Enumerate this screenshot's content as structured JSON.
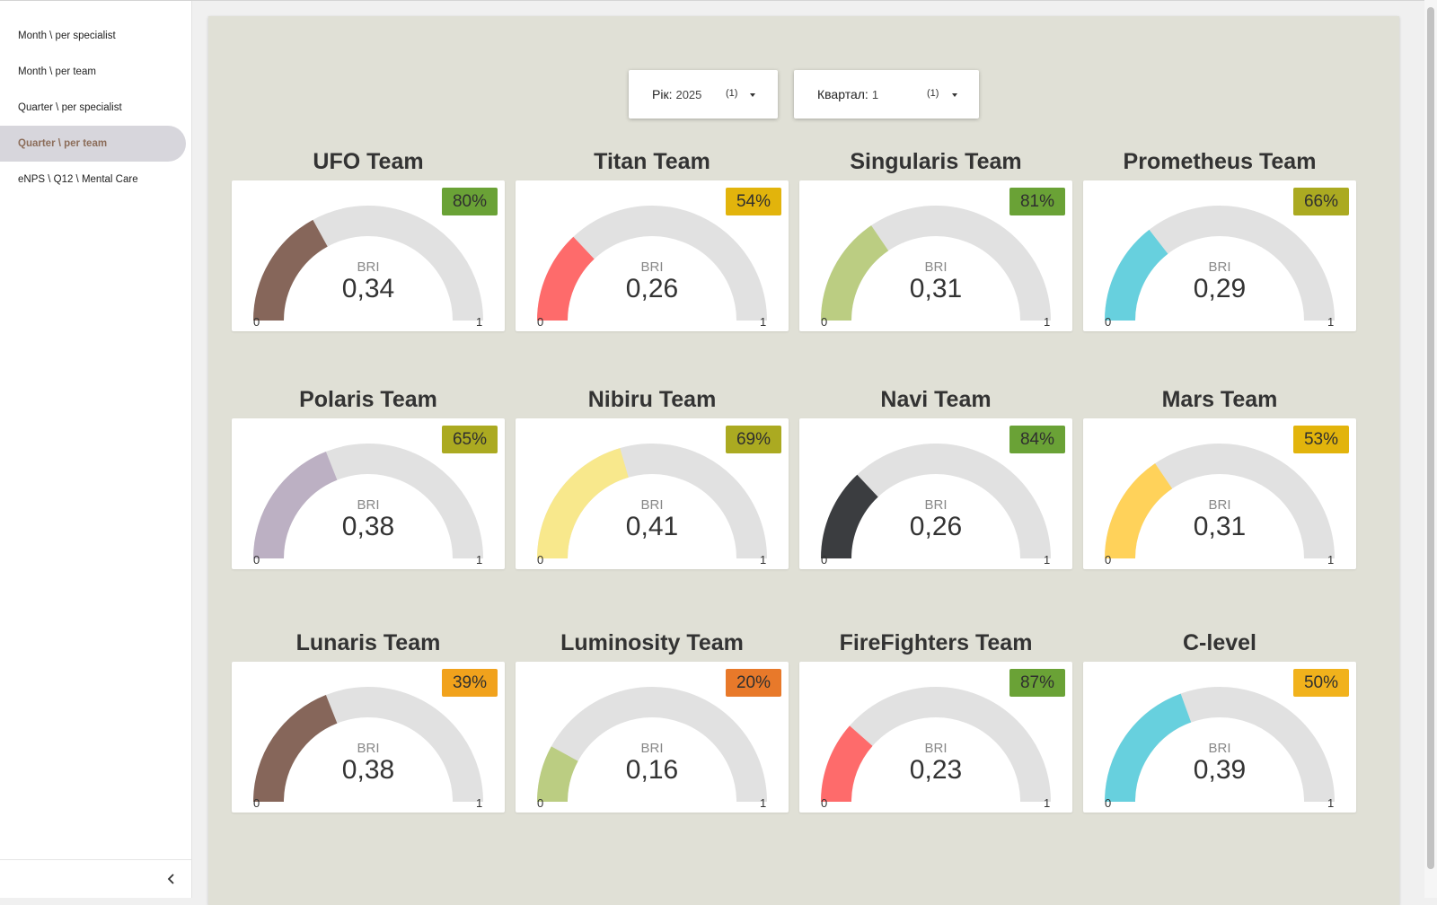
{
  "sidebar": {
    "items": [
      {
        "label": "Month \\ per specialist",
        "active": false
      },
      {
        "label": "Month \\ per team",
        "active": false
      },
      {
        "label": "Quarter \\ per specialist",
        "active": false
      },
      {
        "label": "Quarter \\ per team",
        "active": true
      },
      {
        "label": "eNPS \\ Q12 \\ Mental Care",
        "active": false
      }
    ]
  },
  "filters": {
    "year": {
      "label": "Рік:",
      "value": "2025",
      "count": "(1)"
    },
    "quarter": {
      "label": "Квартал:",
      "value": "1",
      "count": "(1)"
    }
  },
  "teams": [
    {
      "name": "UFO Team",
      "bri": "0,34",
      "bri_value": 0.34,
      "percent": "80%",
      "gauge_color": "#86665a",
      "badge_color": "#6aa236"
    },
    {
      "name": "Titan Team",
      "bri": "0,26",
      "bri_value": 0.26,
      "percent": "54%",
      "gauge_color": "#fe6b6b",
      "badge_color": "#e2b40c"
    },
    {
      "name": "Singularis Team",
      "bri": "0,31",
      "bri_value": 0.31,
      "percent": "81%",
      "gauge_color": "#bbcd82",
      "badge_color": "#6aa236"
    },
    {
      "name": "Prometheus Team",
      "bri": "0,29",
      "bri_value": 0.29,
      "percent": "66%",
      "gauge_color": "#67d0de",
      "badge_color": "#abaa21"
    },
    {
      "name": "Polaris Team",
      "bri": "0,38",
      "bri_value": 0.38,
      "percent": "65%",
      "gauge_color": "#bcb0c3",
      "badge_color": "#abaa21"
    },
    {
      "name": "Nibiru Team",
      "bri": "0,41",
      "bri_value": 0.41,
      "percent": "69%",
      "gauge_color": "#f8e88c",
      "badge_color": "#abaa21"
    },
    {
      "name": "Navi Team",
      "bri": "0,26",
      "bri_value": 0.26,
      "percent": "84%",
      "gauge_color": "#3b3d40",
      "badge_color": "#6aa236"
    },
    {
      "name": "Mars Team",
      "bri": "0,31",
      "bri_value": 0.31,
      "percent": "53%",
      "gauge_color": "#ffd25a",
      "badge_color": "#e2b40c"
    },
    {
      "name": "Lunaris Team",
      "bri": "0,38",
      "bri_value": 0.38,
      "percent": "39%",
      "gauge_color": "#86665a",
      "badge_color": "#f1a21c"
    },
    {
      "name": "Luminosity Team",
      "bri": "0,16",
      "bri_value": 0.16,
      "percent": "20%",
      "gauge_color": "#bbcd82",
      "badge_color": "#e8792a"
    },
    {
      "name": "FireFighters Team",
      "bri": "0,23",
      "bri_value": 0.23,
      "percent": "87%",
      "gauge_color": "#fe6b6b",
      "badge_color": "#6aa236"
    },
    {
      "name": "C-level",
      "bri": "0,39",
      "bri_value": 0.39,
      "percent": "50%",
      "gauge_color": "#67d0de",
      "badge_color": "#f1b21c"
    }
  ],
  "gauge": {
    "label": "BRI",
    "min": "0",
    "max": "1",
    "track_color": "#e1e1e1"
  },
  "icons": {
    "collapse": "chevron-left-icon",
    "dropdown": "caret-down-icon"
  }
}
